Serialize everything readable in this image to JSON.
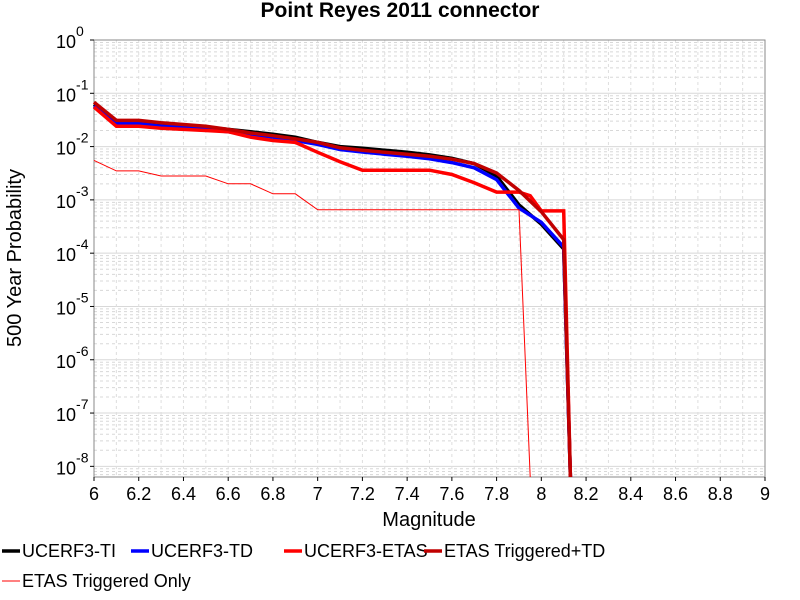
{
  "chart_data": {
    "type": "line",
    "title": "Point Reyes 2011 connector",
    "xlabel": "Magnitude",
    "ylabel": "500 Year Probability",
    "xlim": [
      6,
      9
    ],
    "ylim_log10": [
      -8.2,
      0
    ],
    "y_scale": "log",
    "grid": true,
    "x_ticks": [
      "6",
      "6.2",
      "6.4",
      "6.6",
      "6.8",
      "7",
      "7.2",
      "7.4",
      "7.6",
      "7.8",
      "8",
      "8.2",
      "8.4",
      "8.6",
      "8.8",
      "9"
    ],
    "y_ticks": [
      {
        "base": "10",
        "exp": "0",
        "value": 1
      },
      {
        "base": "10",
        "exp": "-1",
        "value": 0.1
      },
      {
        "base": "10",
        "exp": "-2",
        "value": 0.01
      },
      {
        "base": "10",
        "exp": "-3",
        "value": 0.001
      },
      {
        "base": "10",
        "exp": "-4",
        "value": 0.0001
      },
      {
        "base": "10",
        "exp": "-5",
        "value": 1e-05
      },
      {
        "base": "10",
        "exp": "-6",
        "value": 1e-06
      },
      {
        "base": "10",
        "exp": "-7",
        "value": 1e-07
      },
      {
        "base": "10",
        "exp": "-8",
        "value": 1e-08
      }
    ],
    "series": [
      {
        "name": "UCERF3-TI",
        "color": "#000000",
        "width": 3.5,
        "x": [
          6.0,
          6.1,
          6.2,
          6.3,
          6.4,
          6.5,
          6.6,
          6.7,
          6.8,
          6.9,
          7.0,
          7.1,
          7.2,
          7.3,
          7.4,
          7.5,
          7.6,
          7.7,
          7.8,
          7.9,
          8.0,
          8.1,
          8.13
        ],
        "y": [
          0.062,
          0.029,
          0.029,
          0.026,
          0.025,
          0.023,
          0.021,
          0.019,
          0.017,
          0.015,
          0.012,
          0.01,
          0.0093,
          0.0085,
          0.0078,
          0.007,
          0.006,
          0.0048,
          0.0028,
          0.0008,
          0.00035,
          0.00012,
          2.5e-09
        ]
      },
      {
        "name": "UCERF3-TD",
        "color": "#0000ff",
        "width": 3.5,
        "x": [
          6.0,
          6.1,
          6.2,
          6.3,
          6.4,
          6.5,
          6.6,
          6.7,
          6.8,
          6.9,
          7.0,
          7.1,
          7.2,
          7.3,
          7.4,
          7.5,
          7.6,
          7.7,
          7.8,
          7.9,
          8.0,
          8.1,
          8.13
        ],
        "y": [
          0.058,
          0.027,
          0.027,
          0.024,
          0.023,
          0.021,
          0.019,
          0.017,
          0.015,
          0.013,
          0.011,
          0.0088,
          0.0079,
          0.0072,
          0.0066,
          0.0059,
          0.005,
          0.004,
          0.0024,
          0.0007,
          0.00038,
          0.00013,
          2.5e-09
        ]
      },
      {
        "name": "UCERF3-ETAS",
        "color": "#ff0000",
        "width": 3.5,
        "x": [
          6.0,
          6.1,
          6.2,
          6.3,
          6.4,
          6.5,
          6.6,
          6.7,
          6.8,
          6.9,
          7.0,
          7.1,
          7.2,
          7.3,
          7.4,
          7.5,
          7.6,
          7.7,
          7.8,
          7.9,
          7.95,
          8.0,
          8.1,
          8.13
        ],
        "y": [
          0.055,
          0.024,
          0.024,
          0.022,
          0.021,
          0.02,
          0.019,
          0.015,
          0.013,
          0.012,
          0.0078,
          0.0052,
          0.0036,
          0.0036,
          0.0036,
          0.0036,
          0.003,
          0.0021,
          0.0014,
          0.0014,
          0.0012,
          0.00062,
          0.00062,
          2.5e-09
        ]
      },
      {
        "name": "ETAS Triggered+TD",
        "color": "#c00000",
        "width": 3.5,
        "x": [
          6.0,
          6.1,
          6.2,
          6.3,
          6.4,
          6.5,
          6.6,
          6.7,
          6.8,
          6.9,
          7.0,
          7.1,
          7.2,
          7.3,
          7.4,
          7.5,
          7.6,
          7.7,
          7.8,
          7.9,
          8.0,
          8.1,
          8.13
        ],
        "y": [
          0.068,
          0.031,
          0.031,
          0.028,
          0.026,
          0.024,
          0.021,
          0.018,
          0.016,
          0.014,
          0.012,
          0.0095,
          0.0085,
          0.0078,
          0.0072,
          0.0066,
          0.0058,
          0.0048,
          0.0032,
          0.0015,
          0.0006,
          0.00018,
          2.5e-09
        ]
      },
      {
        "name": "ETAS Triggered Only",
        "color": "#ff0000",
        "width": 1,
        "x": [
          6.0,
          6.1,
          6.2,
          6.3,
          6.4,
          6.5,
          6.6,
          6.7,
          6.8,
          6.9,
          7.0,
          7.1,
          7.2,
          7.3,
          7.4,
          7.5,
          7.6,
          7.7,
          7.8,
          7.9,
          7.95
        ],
        "y": [
          0.0055,
          0.0035,
          0.0035,
          0.0028,
          0.0028,
          0.0028,
          0.002,
          0.002,
          0.0013,
          0.0013,
          0.00065,
          0.00065,
          0.00065,
          0.00065,
          0.00065,
          0.00065,
          0.00065,
          0.00065,
          0.00065,
          0.00065,
          2.5e-09
        ]
      }
    ]
  }
}
